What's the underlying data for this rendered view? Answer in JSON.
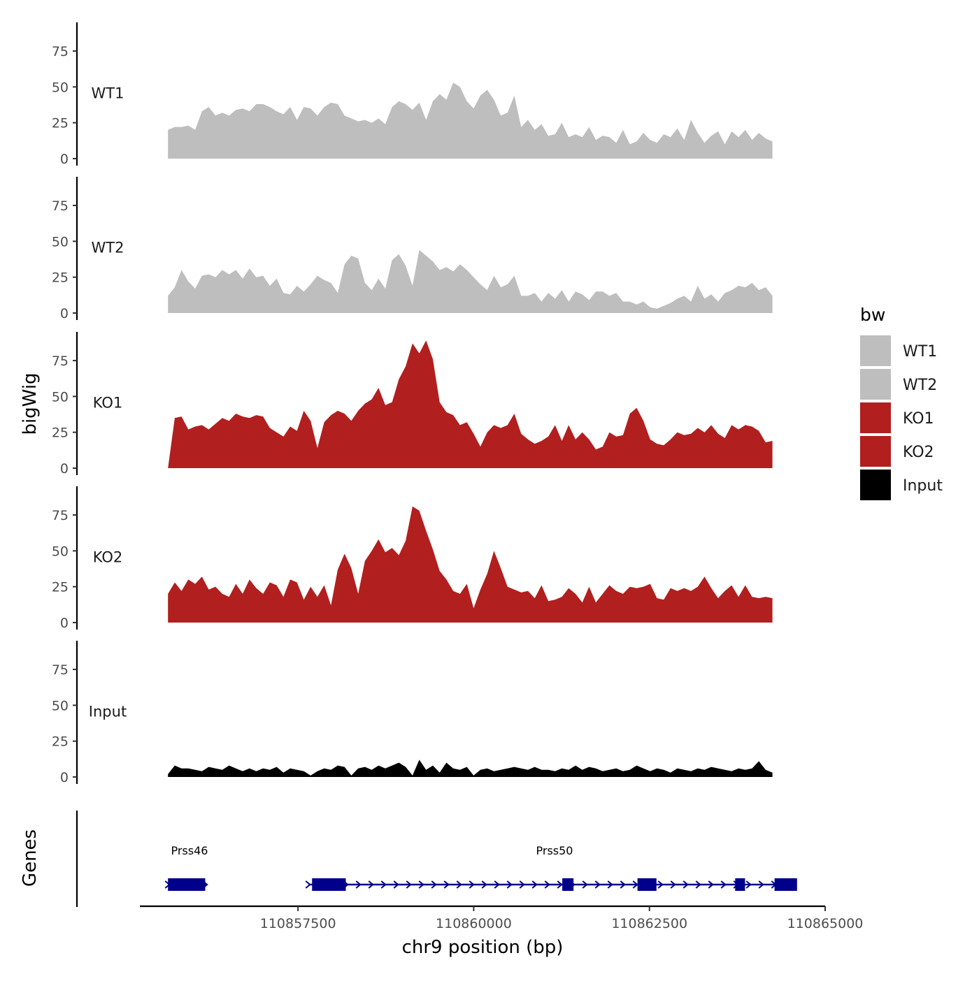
{
  "chart_data": {
    "type": "area",
    "ylabel": "bigWig",
    "xlabel": "chr9 position (bp)",
    "ylim": [
      0,
      95
    ],
    "y_ticks": [
      0,
      25,
      50,
      75
    ],
    "x_range": [
      110855250,
      110865000
    ],
    "x_ticks": [
      110857500,
      110860000,
      110862500,
      110865000
    ],
    "signal_range": [
      110855650,
      110864250
    ],
    "legend": {
      "title": "bw",
      "placement": "right",
      "entries": [
        {
          "label": "WT1",
          "color": "#BEBEBE"
        },
        {
          "label": "WT2",
          "color": "#BEBEBE"
        },
        {
          "label": "KO1",
          "color": "#B21F1F"
        },
        {
          "label": "KO2",
          "color": "#B21F1F"
        },
        {
          "label": "Input",
          "color": "#000000"
        }
      ]
    },
    "series": [
      {
        "name": "WT1",
        "color": "#BEBEBE",
        "values": [
          20,
          22,
          22,
          23,
          20,
          33,
          36,
          30,
          32,
          30,
          34,
          35,
          33,
          38,
          38,
          36,
          33,
          31,
          36,
          27,
          36,
          35,
          30,
          36,
          39,
          38,
          30,
          28,
          26,
          27,
          25,
          28,
          24,
          36,
          40,
          38,
          34,
          39,
          27,
          40,
          45,
          41,
          53,
          50,
          40,
          35,
          44,
          48,
          41,
          30,
          32,
          44,
          22,
          27,
          20,
          24,
          16,
          17,
          25,
          15,
          17,
          15,
          22,
          13,
          16,
          15,
          11,
          20,
          10,
          12,
          18,
          13,
          11,
          17,
          15,
          21,
          13,
          27,
          18,
          11,
          16,
          19,
          10,
          19,
          15,
          20,
          13,
          18,
          14,
          12
        ]
      },
      {
        "name": "WT2",
        "color": "#BEBEBE",
        "values": [
          12,
          18,
          30,
          22,
          17,
          26,
          27,
          25,
          30,
          27,
          30,
          24,
          31,
          25,
          26,
          19,
          24,
          14,
          13,
          19,
          15,
          20,
          26,
          23,
          21,
          14,
          34,
          40,
          38,
          21,
          16,
          24,
          17,
          37,
          41,
          33,
          19,
          44,
          40,
          36,
          30,
          32,
          29,
          34,
          30,
          25,
          20,
          16,
          26,
          18,
          20,
          26,
          12,
          12,
          14,
          8,
          14,
          10,
          16,
          8,
          15,
          13,
          9,
          15,
          15,
          12,
          14,
          8,
          8,
          6,
          8,
          4,
          3,
          5,
          7,
          10,
          12,
          8,
          19,
          10,
          13,
          8,
          14,
          16,
          19,
          18,
          21,
          16,
          18,
          12
        ]
      },
      {
        "name": "KO1",
        "color": "#B21F1F",
        "values": [
          0,
          35,
          36,
          27,
          29,
          30,
          27,
          31,
          35,
          33,
          38,
          36,
          35,
          37,
          36,
          28,
          25,
          22,
          29,
          26,
          40,
          33,
          14,
          32,
          37,
          40,
          38,
          33,
          40,
          45,
          48,
          56,
          44,
          46,
          62,
          71,
          87,
          80,
          89,
          76,
          46,
          39,
          37,
          30,
          32,
          24,
          15,
          25,
          30,
          28,
          30,
          38,
          24,
          20,
          17,
          19,
          22,
          30,
          19,
          30,
          20,
          25,
          20,
          13,
          15,
          25,
          22,
          23,
          38,
          42,
          33,
          20,
          17,
          16,
          20,
          25,
          23,
          24,
          28,
          25,
          30,
          24,
          21,
          30,
          27,
          30,
          29,
          26,
          18,
          19
        ]
      },
      {
        "name": "KO2",
        "color": "#B21F1F",
        "values": [
          20,
          28,
          22,
          30,
          27,
          32,
          23,
          25,
          20,
          18,
          27,
          20,
          30,
          24,
          20,
          28,
          26,
          18,
          30,
          28,
          16,
          25,
          18,
          26,
          12,
          37,
          48,
          38,
          20,
          43,
          50,
          58,
          49,
          52,
          47,
          57,
          81,
          78,
          64,
          51,
          36,
          30,
          22,
          20,
          27,
          10,
          23,
          34,
          50,
          38,
          25,
          23,
          21,
          22,
          17,
          26,
          15,
          16,
          18,
          24,
          20,
          14,
          25,
          14,
          20,
          26,
          22,
          20,
          25,
          24,
          25,
          27,
          17,
          16,
          24,
          22,
          24,
          22,
          25,
          32,
          24,
          17,
          22,
          26,
          18,
          26,
          18,
          17,
          18,
          17
        ]
      },
      {
        "name": "Input",
        "color": "#000000",
        "values": [
          2,
          8,
          6,
          6,
          5,
          4,
          7,
          6,
          5,
          8,
          6,
          4,
          6,
          4,
          6,
          5,
          7,
          3,
          6,
          5,
          4,
          1,
          4,
          6,
          5,
          8,
          7,
          1,
          6,
          7,
          5,
          8,
          6,
          8,
          10,
          7,
          1,
          12,
          5,
          8,
          3,
          10,
          6,
          5,
          7,
          1,
          5,
          6,
          4,
          5,
          6,
          7,
          6,
          5,
          7,
          5,
          5,
          4,
          6,
          5,
          8,
          5,
          7,
          6,
          4,
          5,
          6,
          4,
          5,
          8,
          6,
          4,
          6,
          5,
          3,
          6,
          5,
          4,
          6,
          5,
          7,
          6,
          5,
          4,
          6,
          5,
          6,
          11,
          5,
          3
        ]
      }
    ],
    "genes": {
      "track_label": "Genes",
      "color": "#00008B",
      "items": [
        {
          "name": "Prss46",
          "start": 110855650,
          "end": 110856200,
          "exons": [
            [
              110855650,
              110856180
            ]
          ]
        },
        {
          "name": "Prss50",
          "start": 110857650,
          "end": 110864300,
          "exons": [
            [
              110857700,
              110858180
            ],
            [
              110861260,
              110861420
            ],
            [
              110862330,
              110862600
            ],
            [
              110863720,
              110863860
            ],
            [
              110864280,
              110864600
            ]
          ]
        }
      ]
    }
  }
}
